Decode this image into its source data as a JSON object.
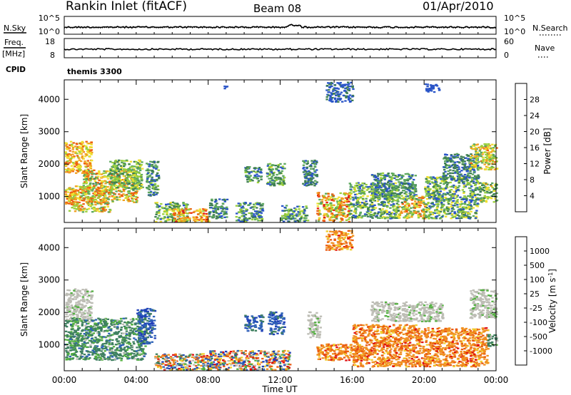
{
  "header": {
    "station": "Rankin Inlet (fitACF)",
    "beam": "Beam 08",
    "date": "01/Apr/2010"
  },
  "side_labels": {
    "nsky": "N.Sky",
    "freq": "Freq.",
    "mhz": "[MHz]",
    "cpid": "CPID",
    "nsearch": "N.Search",
    "nave": "Nave"
  },
  "cpid_value": "themis 3300",
  "colors": {
    "trace": "#000000",
    "ground_scatter": "#bdbdb5",
    "power_scale": [
      "#1030d8",
      "#2a55c8",
      "#3f7f52",
      "#5da85e",
      "#9ad03a",
      "#f0e030",
      "#f0a020",
      "#ee6010",
      "#e62010"
    ],
    "velocity_scale": [
      "#1f3fb8",
      "#2f63b8",
      "#3f8060",
      "#53b040",
      "#bdbdb5",
      "#f0d030",
      "#f09020",
      "#ea5a10",
      "#e01010"
    ]
  },
  "chart_data": [
    {
      "type": "line",
      "panel": "noise",
      "left_axis": {
        "ticks": [
          "10^5",
          "10^0"
        ]
      },
      "right_axis": {
        "ticks": [
          "10^5",
          "10^0"
        ]
      },
      "series": [
        {
          "values": []
        },
        {
          "values": []
        }
      ]
    },
    {
      "type": "line",
      "panel": "frequency",
      "left_axis": {
        "ticks": [
          "18",
          "8"
        ]
      },
      "right_axis": {
        "ticks": [
          "60",
          "0"
        ]
      },
      "series": [
        {
          "values": []
        }
      ]
    },
    {
      "type": "heatmap",
      "panel": "power",
      "ylabel": "Slant Range [km]",
      "yticks": [
        1000,
        2000,
        3000,
        4000
      ],
      "ylim": [
        200,
        4600
      ],
      "xticks": [
        "00:00",
        "04:00",
        "08:00",
        "12:00",
        "16:00",
        "20:00",
        "00:00"
      ],
      "xlim": [
        0,
        24
      ],
      "colorbar": {
        "label": "Power [dB]",
        "ticks": [
          4,
          8,
          12,
          16,
          20,
          24,
          28
        ],
        "range": [
          0,
          32
        ]
      },
      "regions": [
        {
          "t": [
            0.0,
            1.5
          ],
          "r": [
            1700,
            2700
          ],
          "v": [
            16,
            28
          ]
        },
        {
          "t": [
            0.0,
            0.6
          ],
          "r": [
            700,
            1200
          ],
          "v": [
            16,
            28
          ]
        },
        {
          "t": [
            0.2,
            2.5
          ],
          "r": [
            500,
            1300
          ],
          "v": [
            12,
            28
          ]
        },
        {
          "t": [
            1.0,
            4.0
          ],
          "r": [
            800,
            1800
          ],
          "v": [
            10,
            28
          ]
        },
        {
          "t": [
            2.5,
            4.3
          ],
          "r": [
            1200,
            2100
          ],
          "v": [
            8,
            20
          ]
        },
        {
          "t": [
            4.5,
            5.2
          ],
          "r": [
            1000,
            2100
          ],
          "v": [
            4,
            16
          ]
        },
        {
          "t": [
            5.0,
            6.8
          ],
          "r": [
            200,
            800
          ],
          "v": [
            6,
            20
          ]
        },
        {
          "t": [
            6.0,
            8.0
          ],
          "r": [
            200,
            600
          ],
          "v": [
            16,
            30
          ]
        },
        {
          "t": [
            8.0,
            9.0
          ],
          "r": [
            300,
            900
          ],
          "v": [
            4,
            14
          ]
        },
        {
          "t": [
            9.5,
            11.0
          ],
          "r": [
            200,
            800
          ],
          "v": [
            4,
            16
          ]
        },
        {
          "t": [
            10.0,
            10.9
          ],
          "r": [
            1400,
            1900
          ],
          "v": [
            4,
            16
          ]
        },
        {
          "t": [
            11.2,
            12.2
          ],
          "r": [
            1300,
            2000
          ],
          "v": [
            6,
            18
          ]
        },
        {
          "t": [
            12.0,
            13.5
          ],
          "r": [
            200,
            700
          ],
          "v": [
            4,
            18
          ]
        },
        {
          "t": [
            13.2,
            14.0
          ],
          "r": [
            1300,
            2100
          ],
          "v": [
            4,
            12
          ]
        },
        {
          "t": [
            14.0,
            15.8
          ],
          "r": [
            200,
            1100
          ],
          "v": [
            12,
            30
          ]
        },
        {
          "t": [
            15.8,
            18.5
          ],
          "r": [
            300,
            1400
          ],
          "v": [
            4,
            20
          ]
        },
        {
          "t": [
            17.0,
            19.5
          ],
          "r": [
            900,
            1700
          ],
          "v": [
            4,
            16
          ]
        },
        {
          "t": [
            18.5,
            20.0
          ],
          "r": [
            300,
            1000
          ],
          "v": [
            10,
            28
          ]
        },
        {
          "t": [
            20.0,
            23.0
          ],
          "r": [
            300,
            1600
          ],
          "v": [
            4,
            20
          ]
        },
        {
          "t": [
            21.0,
            23.0
          ],
          "r": [
            1500,
            2300
          ],
          "v": [
            4,
            12
          ]
        },
        {
          "t": [
            22.5,
            24.0
          ],
          "r": [
            1800,
            2600
          ],
          "v": [
            12,
            26
          ]
        },
        {
          "t": [
            23.0,
            24.0
          ],
          "r": [
            800,
            1400
          ],
          "v": [
            8,
            22
          ]
        },
        {
          "t": [
            14.5,
            16.0
          ],
          "r": [
            3900,
            4500
          ],
          "v": [
            4,
            8
          ]
        },
        {
          "t": [
            8.8,
            9.0
          ],
          "r": [
            4300,
            4450
          ],
          "v": [
            4,
            6
          ]
        },
        {
          "t": [
            20.0,
            20.8
          ],
          "r": [
            4200,
            4450
          ],
          "v": [
            4,
            6
          ]
        }
      ]
    },
    {
      "type": "heatmap",
      "panel": "velocity",
      "ylabel": "Slant Range [km]",
      "yticks": [
        1000,
        2000,
        3000,
        4000
      ],
      "ylim": [
        200,
        4600
      ],
      "xticks": [
        "00:00",
        "04:00",
        "08:00",
        "12:00",
        "16:00",
        "20:00",
        "00:00"
      ],
      "xlim": [
        0,
        24
      ],
      "xlabel": "Time UT",
      "colorbar": {
        "label": "Velocity [m s-1]",
        "ticks": [
          "1000",
          "500",
          "100",
          "25",
          "-25",
          "-100",
          "-500",
          "-1000"
        ]
      },
      "regions": [
        {
          "t": [
            0.0,
            1.5
          ],
          "r": [
            1700,
            2700
          ],
          "v": "ground"
        },
        {
          "t": [
            0.0,
            4.5
          ],
          "r": [
            500,
            1800
          ],
          "v": "green"
        },
        {
          "t": [
            4.0,
            5.0
          ],
          "r": [
            1000,
            2100
          ],
          "v": "blue"
        },
        {
          "t": [
            5.0,
            8.0
          ],
          "r": [
            200,
            700
          ],
          "v": "mixed"
        },
        {
          "t": [
            8.0,
            12.5
          ],
          "r": [
            200,
            800
          ],
          "v": "mixed"
        },
        {
          "t": [
            10.0,
            11.0
          ],
          "r": [
            1400,
            1900
          ],
          "v": "blue"
        },
        {
          "t": [
            11.3,
            12.2
          ],
          "r": [
            1300,
            2000
          ],
          "v": "blue"
        },
        {
          "t": [
            13.5,
            14.2
          ],
          "r": [
            1200,
            2000
          ],
          "v": "ground"
        },
        {
          "t": [
            14.0,
            16.5
          ],
          "r": [
            500,
            1000
          ],
          "v": "orange"
        },
        {
          "t": [
            16.0,
            19.5
          ],
          "r": [
            300,
            1600
          ],
          "v": "orange"
        },
        {
          "t": [
            17.0,
            21.0
          ],
          "r": [
            1700,
            2300
          ],
          "v": "ground"
        },
        {
          "t": [
            19.5,
            23.5
          ],
          "r": [
            300,
            1500
          ],
          "v": "orange"
        },
        {
          "t": [
            22.5,
            24.0
          ],
          "r": [
            1800,
            2700
          ],
          "v": "ground"
        },
        {
          "t": [
            23.5,
            24.0
          ],
          "r": [
            900,
            1300
          ],
          "v": "green"
        },
        {
          "t": [
            14.5,
            16.0
          ],
          "r": [
            3900,
            4500
          ],
          "v": "orange"
        }
      ]
    }
  ]
}
